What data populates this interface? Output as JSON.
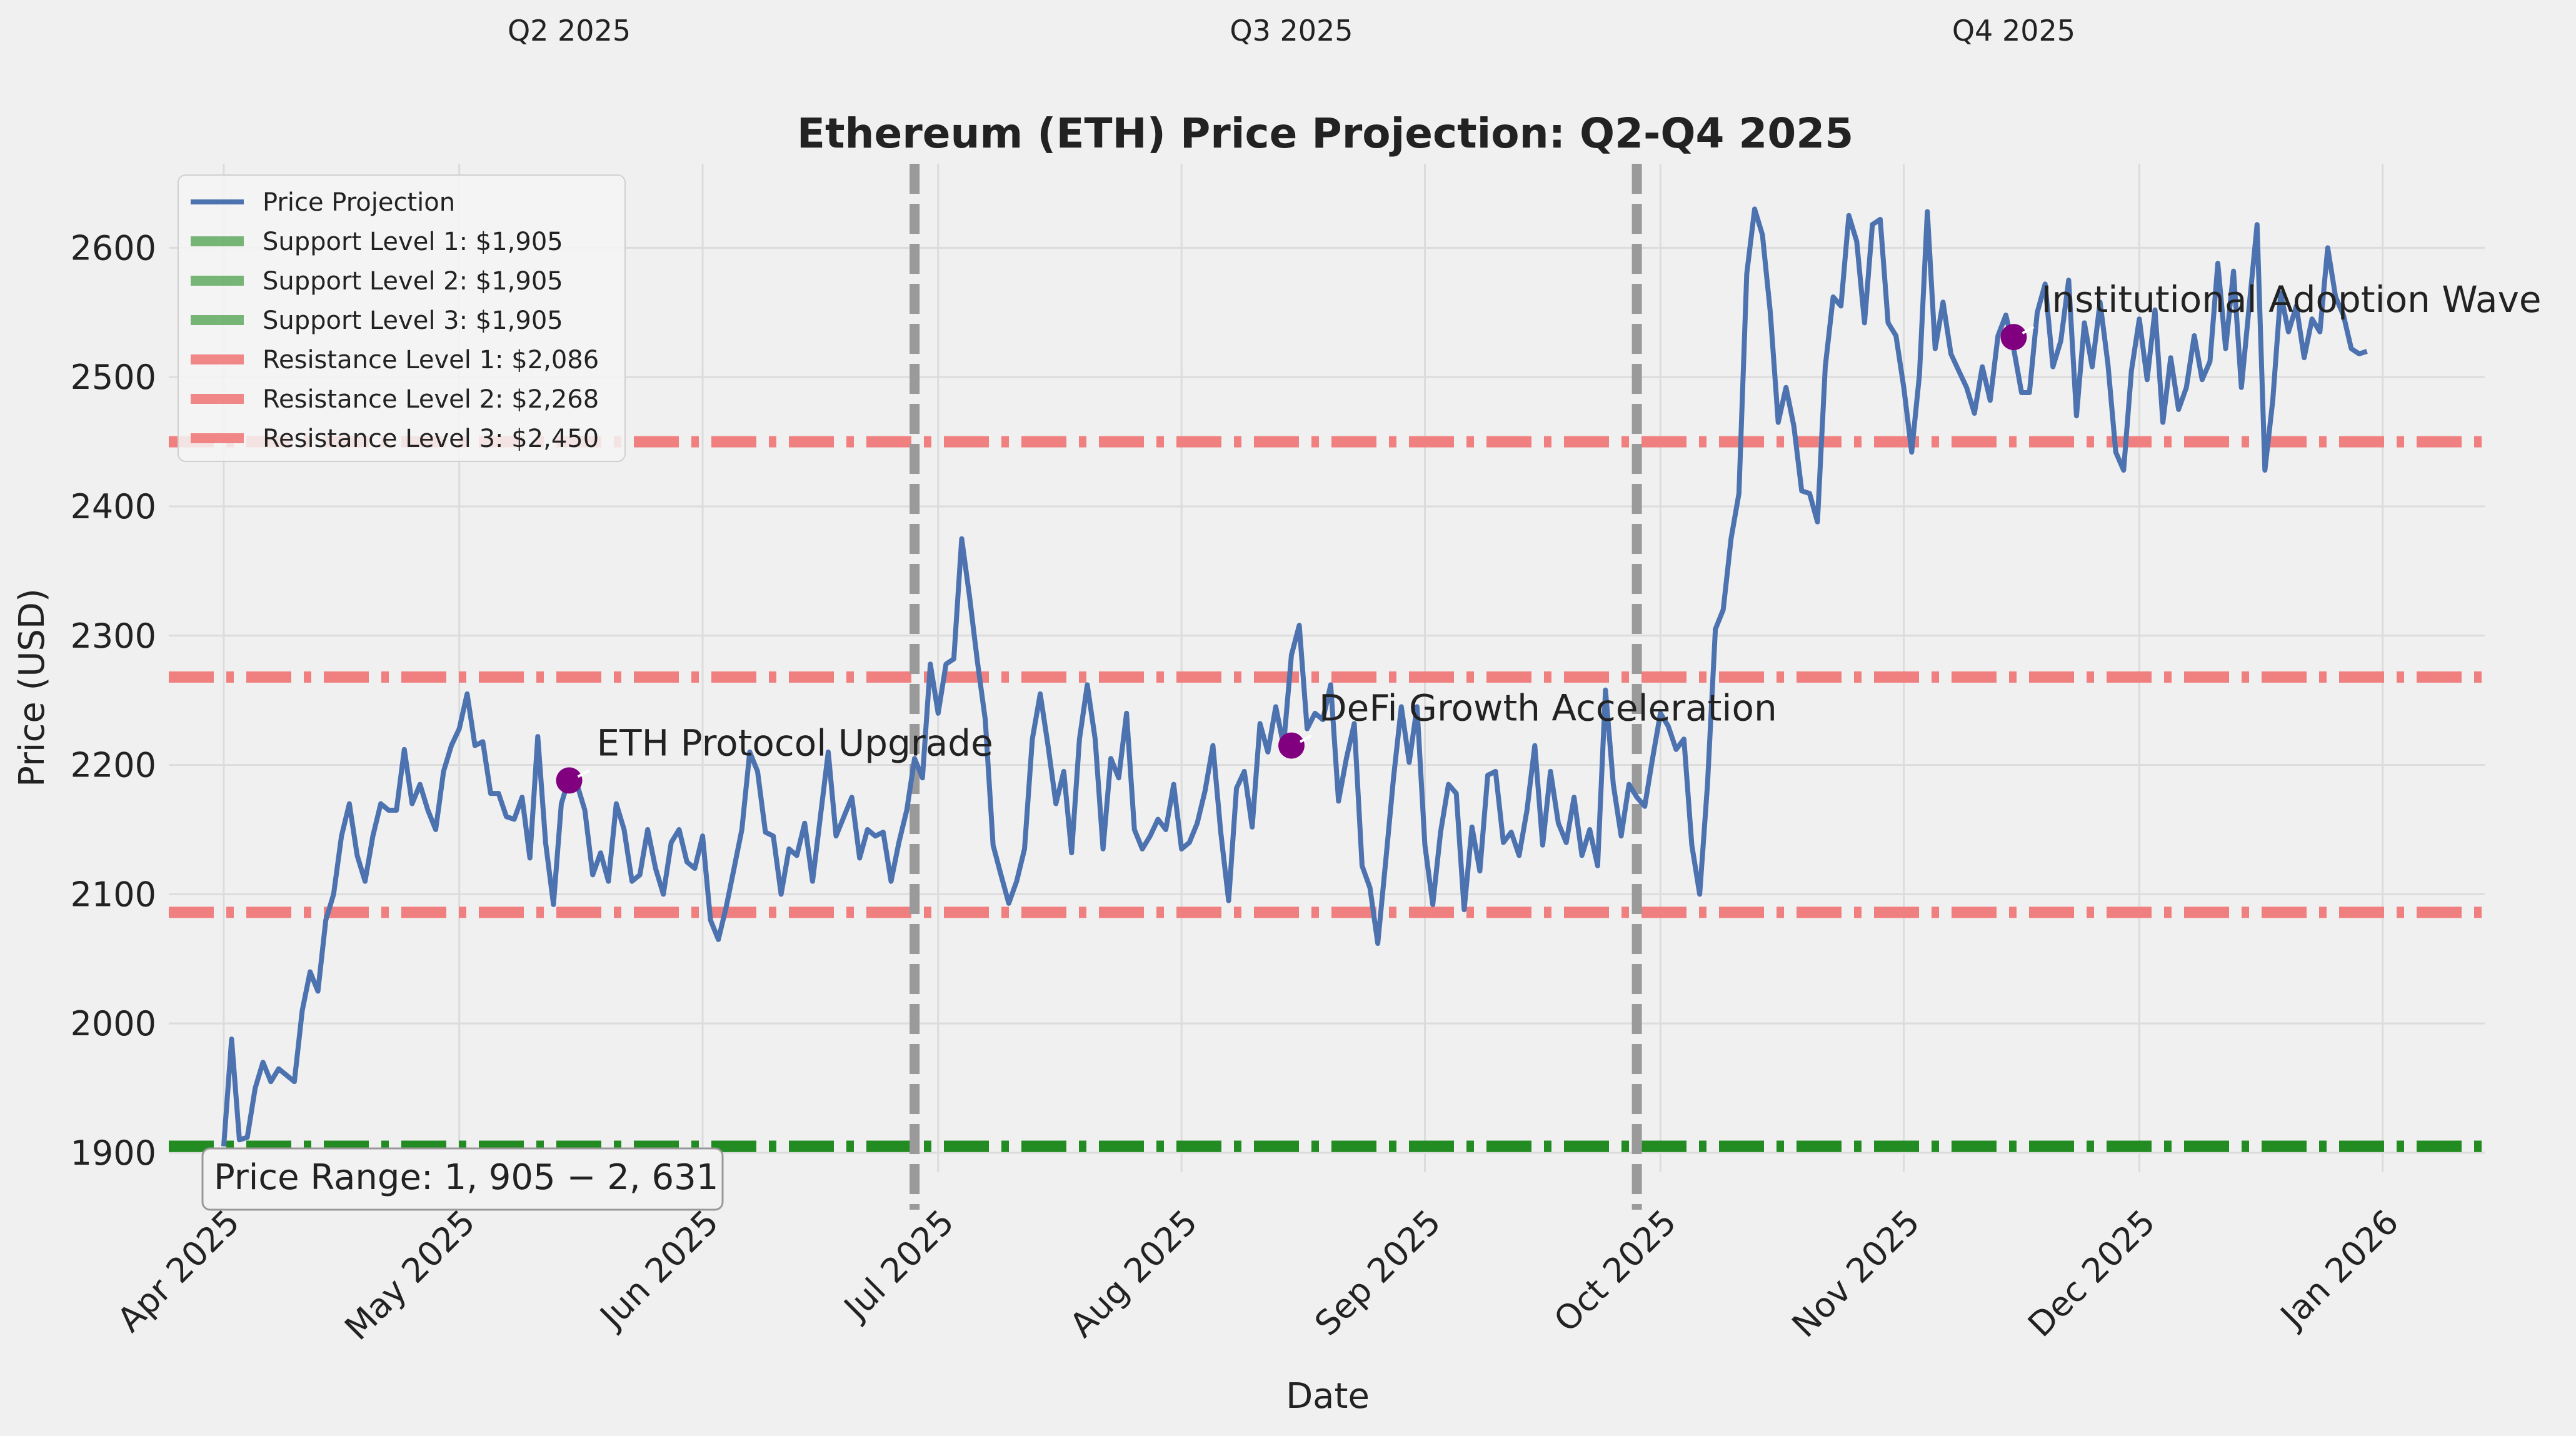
{
  "chart_data": {
    "type": "line",
    "title": "Ethereum (ETH) Price Projection: Q2-Q4 2025",
    "xlabel": "Date",
    "ylabel": "Price (USD)",
    "ylim": [
      1885,
      2665
    ],
    "y_ticks": [
      1900,
      2000,
      2100,
      2200,
      2300,
      2400,
      2500,
      2600
    ],
    "x_range": [
      "2025-03-25",
      "2026-01-14"
    ],
    "x_ticks": [
      {
        "date": "2025-04-01",
        "label": "Apr 2025"
      },
      {
        "date": "2025-05-01",
        "label": "May 2025"
      },
      {
        "date": "2025-06-01",
        "label": "Jun 2025"
      },
      {
        "date": "2025-07-01",
        "label": "Jul 2025"
      },
      {
        "date": "2025-08-01",
        "label": "Aug 2025"
      },
      {
        "date": "2025-09-01",
        "label": "Sep 2025"
      },
      {
        "date": "2025-10-01",
        "label": "Oct 2025"
      },
      {
        "date": "2025-11-01",
        "label": "Nov 2025"
      },
      {
        "date": "2025-12-01",
        "label": "Dec 2025"
      },
      {
        "date": "2026-01-01",
        "label": "Jan 2026"
      }
    ],
    "quarter_labels": [
      {
        "label": "Q2 2025",
        "date": "2025-05-15"
      },
      {
        "label": "Q3 2025",
        "date": "2025-08-15"
      },
      {
        "label": "Q4 2025",
        "date": "2025-11-15"
      }
    ],
    "quarter_dividers": [
      "2025-06-28",
      "2025-09-28"
    ],
    "series": [
      {
        "name": "Price Projection",
        "color": "#4c72b0",
        "start_date": "2025-04-01",
        "step_days": 1,
        "values": [
          1905,
          1988,
          1910,
          1912,
          1950,
          1970,
          1955,
          1965,
          1960,
          1955,
          2010,
          2040,
          2025,
          2080,
          2100,
          2145,
          2170,
          2130,
          2110,
          2145,
          2170,
          2165,
          2165,
          2212,
          2170,
          2185,
          2165,
          2150,
          2195,
          2215,
          2228,
          2255,
          2215,
          2218,
          2178,
          2178,
          2160,
          2158,
          2175,
          2128,
          2222,
          2140,
          2092,
          2170,
          2190,
          2185,
          2165,
          2115,
          2132,
          2110,
          2170,
          2150,
          2110,
          2115,
          2150,
          2120,
          2100,
          2140,
          2150,
          2125,
          2120,
          2145,
          2080,
          2065,
          2090,
          2120,
          2150,
          2210,
          2195,
          2148,
          2145,
          2100,
          2135,
          2130,
          2155,
          2110,
          2160,
          2210,
          2145,
          2160,
          2175,
          2128,
          2150,
          2145,
          2148,
          2110,
          2140,
          2165,
          2205,
          2190,
          2278,
          2240,
          2278,
          2282,
          2375,
          2330,
          2280,
          2235,
          2138,
          2115,
          2093,
          2110,
          2135,
          2220,
          2255,
          2215,
          2170,
          2195,
          2132,
          2220,
          2262,
          2220,
          2135,
          2205,
          2190,
          2240,
          2150,
          2135,
          2145,
          2158,
          2150,
          2185,
          2135,
          2140,
          2155,
          2180,
          2215,
          2148,
          2095,
          2182,
          2195,
          2152,
          2232,
          2210,
          2245,
          2215,
          2285,
          2308,
          2228,
          2240,
          2235,
          2262,
          2172,
          2205,
          2232,
          2122,
          2105,
          2062,
          2125,
          2190,
          2245,
          2202,
          2245,
          2138,
          2092,
          2148,
          2185,
          2178,
          2088,
          2152,
          2118,
          2192,
          2195,
          2140,
          2148,
          2130,
          2165,
          2215,
          2138,
          2195,
          2155,
          2140,
          2175,
          2130,
          2150,
          2122,
          2258,
          2185,
          2145,
          2185,
          2175,
          2168,
          2205,
          2240,
          2230,
          2212,
          2220,
          2138,
          2100,
          2185,
          2305,
          2320,
          2375,
          2410,
          2580,
          2630,
          2610,
          2550,
          2465,
          2492,
          2462,
          2412,
          2410,
          2388,
          2508,
          2562,
          2555,
          2625,
          2605,
          2542,
          2618,
          2622,
          2542,
          2532,
          2492,
          2442,
          2502,
          2628,
          2522,
          2558,
          2518,
          2505,
          2492,
          2472,
          2508,
          2482,
          2532,
          2548,
          2522,
          2488,
          2488,
          2550,
          2572,
          2508,
          2528,
          2575,
          2470,
          2542,
          2508,
          2558,
          2510,
          2442,
          2428,
          2505,
          2545,
          2498,
          2552,
          2465,
          2515,
          2475,
          2492,
          2532,
          2498,
          2512,
          2588,
          2522,
          2582,
          2492,
          2555,
          2618,
          2428,
          2482,
          2565,
          2535,
          2555,
          2515,
          2545,
          2535,
          2600,
          2562,
          2548,
          2522,
          2518,
          2520
        ]
      }
    ],
    "support_levels": [
      {
        "label": "Support Level 1: $1,905",
        "value": 1905,
        "color": "#228b22"
      },
      {
        "label": "Support Level 2: $1,905",
        "value": 1905,
        "color": "#228b22"
      },
      {
        "label": "Support Level 3: $1,905",
        "value": 1905,
        "color": "#228b22"
      }
    ],
    "resistance_levels": [
      {
        "label": "Resistance Level 1: $2,086",
        "value": 2086,
        "color": "#f08080"
      },
      {
        "label": "Resistance Level 2: $2,268",
        "value": 2268,
        "color": "#f08080"
      },
      {
        "label": "Resistance Level 3: $2,450",
        "value": 2450,
        "color": "#f08080"
      }
    ],
    "annotations": [
      {
        "label": "ETH Protocol Upgrade",
        "date": "2025-05-15",
        "value": 2188,
        "color": "#800080"
      },
      {
        "label": "DeFi Growth Acceleration",
        "date": "2025-08-15",
        "value": 2215,
        "color": "#800080"
      },
      {
        "label": "Institutional Adoption Wave",
        "date": "2025-11-15",
        "value": 2531,
        "color": "#800080"
      }
    ],
    "range_box": {
      "text": "Price Range: $1,905-$2,631",
      "display": "Price Range: 1, 905 − 2, 631"
    },
    "legend_position": "top-left",
    "grid": true
  }
}
